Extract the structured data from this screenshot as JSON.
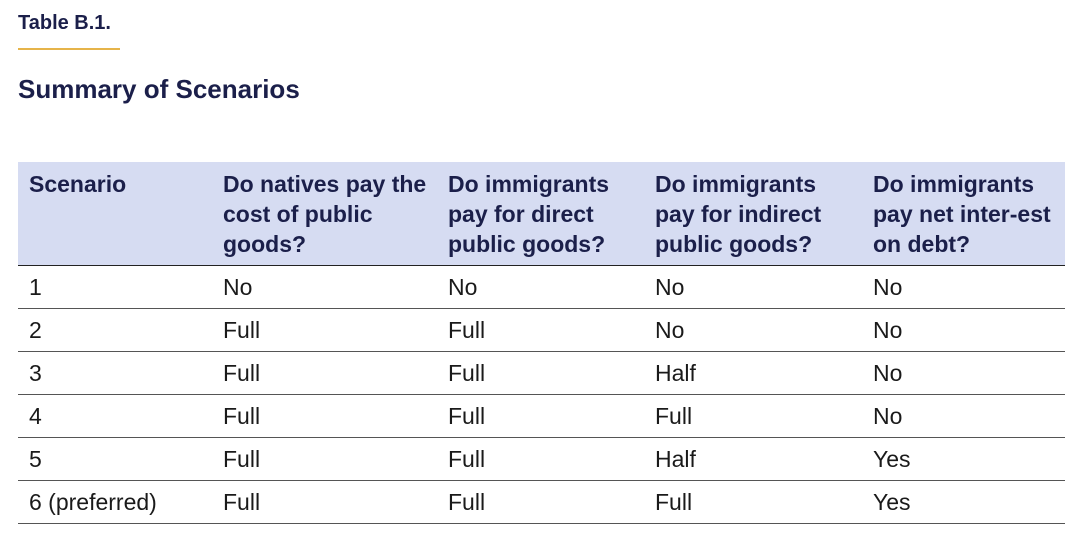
{
  "table_label": "Table B.1.",
  "title": "Summary of Scenarios",
  "columns": [
    "Scenario",
    "Do natives pay the cost of public goods?",
    "Do immigrants pay for direct public goods?",
    "Do immigrants pay for indirect public goods?",
    "Do immigrants pay net inter-est on debt?"
  ],
  "rows": [
    [
      "1",
      "No",
      "No",
      "No",
      "No"
    ],
    [
      "2",
      "Full",
      "Full",
      "No",
      "No"
    ],
    [
      "3",
      "Full",
      "Full",
      "Half",
      "No"
    ],
    [
      "4",
      "Full",
      "Full",
      "Full",
      "No"
    ],
    [
      "5",
      "Full",
      "Full",
      "Half",
      "Yes"
    ],
    [
      "6 (preferred)",
      "Full",
      "Full",
      "Full",
      "Yes"
    ]
  ],
  "colors": {
    "header_bg": "#d6dcf2",
    "title_text": "#1b1f4a",
    "accent_rule": "#e6b44a"
  }
}
